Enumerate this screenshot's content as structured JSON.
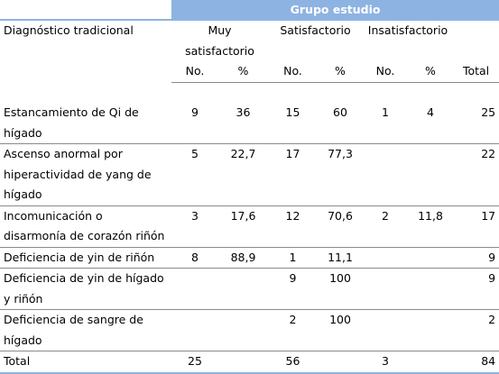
{
  "header": {
    "group_title": "Grupo estudio",
    "row_label": "Diagnóstico tradicional",
    "categories": [
      "Muy satisfactorio",
      "Satisfactorio",
      "Insatisfactorio"
    ],
    "sub": [
      "No.",
      "%",
      "No.",
      "%",
      "No.",
      "%",
      "Total"
    ]
  },
  "rows": [
    {
      "label": "Estancamiento de Qi de hígado",
      "values": [
        "9",
        "36",
        "15",
        "60",
        "1",
        "4",
        "25"
      ]
    },
    {
      "label": "Ascenso anormal por hiperactividad de yang de hígado",
      "values": [
        "5",
        "22,7",
        "17",
        "77,3",
        "",
        "",
        "22"
      ]
    },
    {
      "label": "Incomunicación o disarmonía de corazón riñón",
      "values": [
        "3",
        "17,6",
        "12",
        "70,6",
        "2",
        "11,8",
        "17"
      ]
    },
    {
      "label": "Deficiencia de yin de riñón",
      "values": [
        "8",
        "88,9",
        "1",
        "11,1",
        "",
        "",
        "9"
      ]
    },
    {
      "label": "Deficiencia de yin de hígado y riñón",
      "values": [
        "",
        "",
        "9",
        "100",
        "",
        "",
        "9"
      ]
    },
    {
      "label": "Deficiencia de sangre de hígado",
      "values": [
        "",
        "",
        "2",
        "100",
        "",
        "",
        "2"
      ]
    }
  ],
  "total": {
    "label": "Total",
    "values": [
      "25",
      "",
      "56",
      "",
      "3",
      "",
      "84"
    ]
  },
  "colors": {
    "accent": "#8DB3E2"
  }
}
